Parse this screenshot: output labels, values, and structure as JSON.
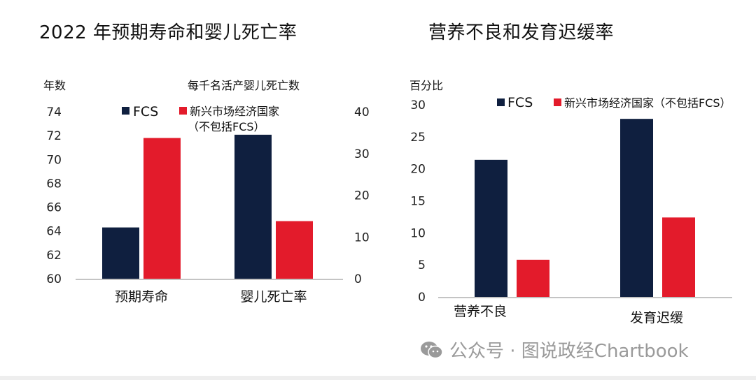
{
  "colors": {
    "fcs": "#0f1f3f",
    "emerging": "#e31b2b"
  },
  "left_chart": {
    "title": "2022 年预期寿命和婴儿死亡率",
    "left_unit": "年数",
    "right_unit": "每千名活产婴儿死亡数",
    "legend": {
      "fcs": "FCS",
      "emerging_line1": "新兴市场经济国家",
      "emerging_line2": "（不包括FCS）"
    }
  },
  "right_chart": {
    "title": "营养不良和发育迟缓率",
    "unit": "百分比",
    "legend": {
      "fcs": "FCS",
      "emerging": "新兴市场经济国家（不包括FCS）"
    }
  },
  "watermark": "公众号 · 图说政经Chartbook",
  "chart_data": [
    {
      "type": "bar",
      "title": "2022 年预期寿命和婴儿死亡率",
      "categories": [
        "预期寿命",
        "婴儿死亡率"
      ],
      "series": [
        {
          "name": "FCS",
          "values": [
            64.3,
            34.5
          ]
        },
        {
          "name": "新兴市场经济国家（不包括FCS）",
          "values": [
            71.8,
            13.8
          ]
        }
      ],
      "axes": {
        "left": {
          "label": "年数",
          "ylim": [
            60,
            74
          ],
          "ticks": [
            60,
            62,
            64,
            66,
            68,
            70,
            72,
            74
          ],
          "applies_to": "预期寿命"
        },
        "right": {
          "label": "每千名活产婴儿死亡数",
          "ylim": [
            0,
            40
          ],
          "ticks": [
            0,
            10,
            20,
            30,
            40
          ],
          "applies_to": "婴儿死亡率"
        }
      },
      "grid": false,
      "legend_position": "top"
    },
    {
      "type": "bar",
      "title": "营养不良和发育迟缓率",
      "categories": [
        "营养不良",
        "发育迟缓"
      ],
      "series": [
        {
          "name": "FCS",
          "values": [
            21.4,
            27.8
          ]
        },
        {
          "name": "新兴市场经济国家（不包括FCS）",
          "values": [
            5.8,
            12.4
          ]
        }
      ],
      "ylabel": "百分比",
      "ylim": [
        0,
        30
      ],
      "ticks": [
        0,
        5,
        10,
        15,
        20,
        25,
        30
      ],
      "grid": false,
      "legend_position": "top"
    }
  ]
}
